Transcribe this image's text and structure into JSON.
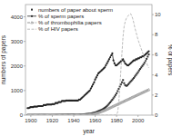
{
  "chart_data": {
    "type": "line",
    "xlabel": "year",
    "ylabel": "numbers of papers",
    "y2label": "% of papers",
    "xlim": [
      1895,
      2013
    ],
    "xticks": [
      1900,
      1920,
      1940,
      1960,
      1980,
      2000
    ],
    "ylim": [
      0,
      4500
    ],
    "yticks": [
      0,
      1000,
      2000,
      3000,
      4000
    ],
    "y2lim": [
      0,
      11
    ],
    "y2ticks": [
      0,
      2,
      4,
      6,
      8,
      10
    ],
    "legend": "upper left",
    "x": [
      1897,
      1898,
      1899,
      1900,
      1901,
      1902,
      1903,
      1904,
      1905,
      1906,
      1907,
      1908,
      1909,
      1910,
      1911,
      1912,
      1913,
      1914,
      1915,
      1916,
      1917,
      1918,
      1919,
      1920,
      1921,
      1922,
      1923,
      1924,
      1925,
      1926,
      1927,
      1928,
      1929,
      1930,
      1931,
      1932,
      1933,
      1934,
      1935,
      1936,
      1937,
      1938,
      1939,
      1940,
      1941,
      1942,
      1943,
      1944,
      1945,
      1946,
      1947,
      1948,
      1949,
      1950,
      1951,
      1952,
      1953,
      1954,
      1955,
      1956,
      1957,
      1958,
      1959,
      1960,
      1961,
      1962,
      1963,
      1964,
      1965,
      1966,
      1967,
      1968,
      1969,
      1970,
      1971,
      1972,
      1973,
      1974,
      1975,
      1976,
      1977,
      1978,
      1979,
      1980,
      1981,
      1982,
      1983,
      1984,
      1985,
      1986,
      1987,
      1988,
      1989,
      1990,
      1991,
      1992,
      1993,
      1994,
      1995,
      1996,
      1997,
      1998,
      1999,
      2000,
      2001,
      2002,
      2003,
      2004,
      2005,
      2006,
      2007,
      2008,
      2009,
      2010
    ],
    "series": [
      {
        "name": "numbers of paper about sperm",
        "type": "scatter",
        "color": "#333333",
        "marker": "square",
        "line_style": "none",
        "values": [
          4,
          4,
          5,
          5,
          5,
          5,
          6,
          6,
          6,
          6,
          7,
          7,
          8,
          8,
          8,
          9,
          9,
          7,
          6,
          6,
          5,
          5,
          6,
          7,
          8,
          9,
          10,
          11,
          12,
          13,
          14,
          15,
          16,
          17,
          18,
          19,
          20,
          21,
          22,
          23,
          24,
          25,
          26,
          22,
          18,
          16,
          15,
          17,
          20,
          22,
          26,
          30,
          34,
          38,
          42,
          46,
          50,
          56,
          62,
          70,
          78,
          88,
          98,
          112,
          126,
          144,
          162,
          180,
          198,
          218,
          242,
          268,
          298,
          332,
          372,
          418,
          468,
          518,
          572,
          628,
          688,
          752,
          818,
          888,
          978,
          1068,
          1158,
          1248,
          1338,
          1428,
          1300,
          1220,
          1190,
          1210,
          1260,
          1310,
          1360,
          1410,
          1460,
          1510,
          1570,
          1630,
          1690,
          1750,
          1820,
          1880,
          1940,
          2000,
          2060,
          2130,
          2210,
          2290,
          2380,
          2470
        ]
      },
      {
        "name": "% of sperm papers",
        "type": "line",
        "axis": "y2",
        "color": "#222222",
        "marker": "circle",
        "line_style": "solid",
        "values": [
          0.7,
          0.7,
          0.75,
          0.8,
          0.8,
          0.8,
          0.85,
          0.85,
          0.85,
          0.85,
          0.9,
          0.9,
          0.9,
          0.9,
          0.9,
          1.0,
          1.0,
          1.0,
          1.05,
          1.05,
          1.05,
          1.05,
          1.05,
          1.1,
          1.1,
          1.1,
          1.2,
          1.2,
          1.2,
          1.3,
          1.3,
          1.3,
          1.4,
          1.4,
          1.4,
          1.4,
          1.45,
          1.45,
          1.45,
          1.45,
          1.45,
          1.45,
          1.45,
          1.45,
          1.45,
          1.45,
          1.45,
          1.45,
          1.55,
          1.55,
          1.65,
          1.75,
          1.85,
          1.95,
          2.05,
          2.15,
          2.25,
          2.35,
          2.45,
          2.65,
          2.85,
          3.05,
          3.25,
          3.55,
          3.75,
          3.95,
          4.15,
          4.25,
          4.35,
          4.45,
          4.55,
          4.65,
          4.75,
          4.95,
          5.15,
          5.35,
          5.55,
          5.75,
          5.95,
          6.15,
          5.45,
          5.15,
          4.95,
          4.95,
          5.05,
          5.15,
          5.25,
          5.35,
          5.45,
          5.55,
          5.35,
          5.15,
          5.05,
          4.95,
          4.95,
          5.05,
          5.15,
          5.25,
          5.35,
          5.45,
          5.45,
          5.55,
          5.55,
          5.65,
          5.65,
          5.75,
          5.75,
          5.85,
          5.85,
          5.95,
          6.05,
          6.15,
          6.25,
          6.35
        ]
      },
      {
        "name": "% of thrombophilia papers",
        "type": "line",
        "axis": "y2",
        "color": "#777777",
        "marker": "triangle",
        "line_style": "dashed",
        "values": [
          0.04,
          0.04,
          0.04,
          0.04,
          0.04,
          0.04,
          0.04,
          0.04,
          0.04,
          0.04,
          0.04,
          0.04,
          0.04,
          0.04,
          0.04,
          0.04,
          0.04,
          0.04,
          0.04,
          0.04,
          0.04,
          0.04,
          0.04,
          0.04,
          0.04,
          0.04,
          0.04,
          0.04,
          0.04,
          0.04,
          0.04,
          0.04,
          0.04,
          0.04,
          0.04,
          0.04,
          0.04,
          0.04,
          0.04,
          0.04,
          0.04,
          0.04,
          0.04,
          0.04,
          0.04,
          0.04,
          0.04,
          0.04,
          0.04,
          0.04,
          0.04,
          0.04,
          0.04,
          0.04,
          0.05,
          0.06,
          0.07,
          0.08,
          0.09,
          0.1,
          0.11,
          0.12,
          0.14,
          0.16,
          0.19,
          0.22,
          0.25,
          0.29,
          0.33,
          0.37,
          0.41,
          0.45,
          0.49,
          0.54,
          0.59,
          0.64,
          0.69,
          0.74,
          0.79,
          0.84,
          0.89,
          0.94,
          0.99,
          1.04,
          1.09,
          1.14,
          1.19,
          1.24,
          1.29,
          1.34,
          1.39,
          1.44,
          1.49,
          1.54,
          1.59,
          1.64,
          1.69,
          1.74,
          1.79,
          1.84,
          1.89,
          1.94,
          1.99,
          2.04,
          2.09,
          2.14,
          2.19,
          2.24,
          2.29,
          2.34,
          2.39,
          2.44,
          2.49,
          2.54
        ]
      },
      {
        "name": "% of HIV papers",
        "type": "line",
        "axis": "y2",
        "color": "#aaaaaa",
        "marker": "none",
        "line_style": "dashed",
        "values": [
          0.0,
          0.0,
          0.0,
          0.0,
          0.0,
          0.0,
          0.0,
          0.0,
          0.0,
          0.0,
          0.0,
          0.0,
          0.0,
          0.0,
          0.0,
          0.0,
          0.0,
          0.0,
          0.0,
          0.0,
          0.0,
          0.0,
          0.0,
          0.0,
          0.0,
          0.0,
          0.0,
          0.0,
          0.0,
          0.0,
          0.0,
          0.0,
          0.0,
          0.0,
          0.0,
          0.0,
          0.0,
          0.0,
          0.0,
          0.0,
          0.0,
          0.0,
          0.0,
          0.0,
          0.0,
          0.0,
          0.0,
          0.0,
          0.0,
          0.0,
          0.0,
          0.0,
          0.0,
          0.0,
          0.0,
          0.0,
          0.0,
          0.0,
          0.0,
          0.0,
          0.0,
          0.0,
          0.0,
          0.0,
          0.0,
          0.0,
          0.0,
          0.0,
          0.0,
          0.0,
          0.0,
          0.0,
          0.0,
          0.0,
          0.0,
          0.0,
          0.0,
          0.0,
          0.0,
          0.0,
          0.0,
          0.0,
          0.0,
          0.05,
          0.3,
          1.2,
          2.8,
          4.5,
          6.2,
          7.8,
          8.8,
          9.3,
          9.6,
          9.8,
          9.9,
          10.0,
          10.1,
          9.9,
          9.6,
          9.2,
          8.7,
          8.3,
          7.9,
          7.5,
          7.2,
          6.9,
          6.6,
          6.3,
          6.0,
          5.7,
          5.4,
          5.2,
          4.9,
          4.7
        ]
      }
    ]
  }
}
